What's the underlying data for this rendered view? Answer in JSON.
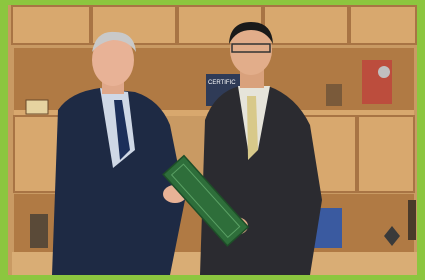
{
  "scene": {
    "certificate_text": "CERTIFIC"
  }
}
